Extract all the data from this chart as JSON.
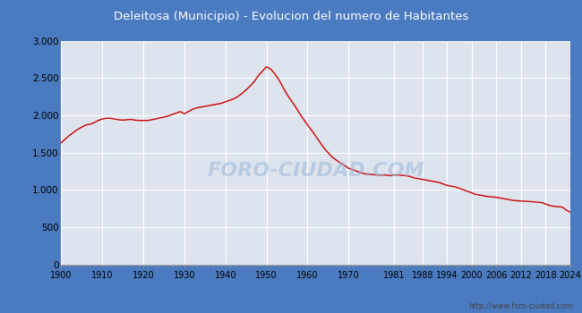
{
  "title": "Deleitosa (Municipio) - Evolucion del numero de Habitantes",
  "title_bg_color": "#4a7abf",
  "title_text_color": "#ffffff",
  "line_color": "#cc0000",
  "outer_bg_color": "#4a7abf",
  "plot_bg_color": "#dde4ee",
  "inner_bg_color": "#e8edf4",
  "watermark": "FORO-CIUDAD.COM",
  "footer": "http://www.foro-ciudad.com",
  "years": [
    1900,
    1901,
    1902,
    1903,
    1904,
    1905,
    1906,
    1907,
    1908,
    1909,
    1910,
    1911,
    1912,
    1913,
    1914,
    1915,
    1916,
    1917,
    1918,
    1919,
    1920,
    1921,
    1922,
    1923,
    1924,
    1925,
    1926,
    1927,
    1928,
    1929,
    1930,
    1931,
    1932,
    1933,
    1934,
    1935,
    1936,
    1937,
    1938,
    1939,
    1940,
    1941,
    1942,
    1943,
    1944,
    1945,
    1946,
    1947,
    1948,
    1949,
    1950,
    1951,
    1952,
    1953,
    1954,
    1955,
    1956,
    1957,
    1958,
    1959,
    1960,
    1961,
    1962,
    1963,
    1964,
    1965,
    1966,
    1967,
    1968,
    1969,
    1970,
    1971,
    1972,
    1973,
    1974,
    1975,
    1976,
    1977,
    1978,
    1979,
    1980,
    1981,
    1982,
    1983,
    1984,
    1985,
    1986,
    1987,
    1988,
    1989,
    1990,
    1991,
    1992,
    1993,
    1994,
    1995,
    1996,
    1997,
    1998,
    1999,
    2000,
    2001,
    2002,
    2003,
    2004,
    2005,
    2006,
    2007,
    2008,
    2009,
    2010,
    2011,
    2012,
    2013,
    2014,
    2015,
    2016,
    2017,
    2018,
    2019,
    2020,
    2021,
    2022,
    2023,
    2024
  ],
  "population": [
    1630,
    1680,
    1730,
    1770,
    1810,
    1840,
    1870,
    1880,
    1900,
    1930,
    1950,
    1960,
    1960,
    1950,
    1940,
    1935,
    1940,
    1945,
    1935,
    1930,
    1930,
    1930,
    1940,
    1950,
    1965,
    1975,
    1990,
    2010,
    2030,
    2050,
    2020,
    2050,
    2080,
    2100,
    2110,
    2120,
    2130,
    2140,
    2150,
    2160,
    2180,
    2200,
    2220,
    2250,
    2290,
    2340,
    2390,
    2450,
    2530,
    2590,
    2650,
    2620,
    2560,
    2480,
    2380,
    2280,
    2200,
    2120,
    2030,
    1950,
    1870,
    1800,
    1720,
    1640,
    1560,
    1500,
    1440,
    1400,
    1360,
    1330,
    1290,
    1270,
    1250,
    1230,
    1215,
    1210,
    1205,
    1200,
    1195,
    1200,
    1190,
    1200,
    1200,
    1195,
    1190,
    1180,
    1160,
    1150,
    1140,
    1130,
    1120,
    1110,
    1100,
    1080,
    1060,
    1050,
    1040,
    1020,
    1000,
    980,
    960,
    940,
    930,
    920,
    910,
    905,
    900,
    890,
    880,
    870,
    860,
    855,
    850,
    848,
    845,
    840,
    835,
    830,
    810,
    790,
    780,
    775,
    770,
    730,
    700
  ],
  "xticks": [
    1900,
    1910,
    1920,
    1930,
    1940,
    1950,
    1960,
    1970,
    1981,
    1988,
    1994,
    2000,
    2006,
    2012,
    2018,
    2024
  ],
  "yticks": [
    0,
    500,
    1000,
    1500,
    2000,
    2500,
    3000
  ],
  "ylim": [
    0,
    3000
  ],
  "xlim": [
    1900,
    2024
  ]
}
